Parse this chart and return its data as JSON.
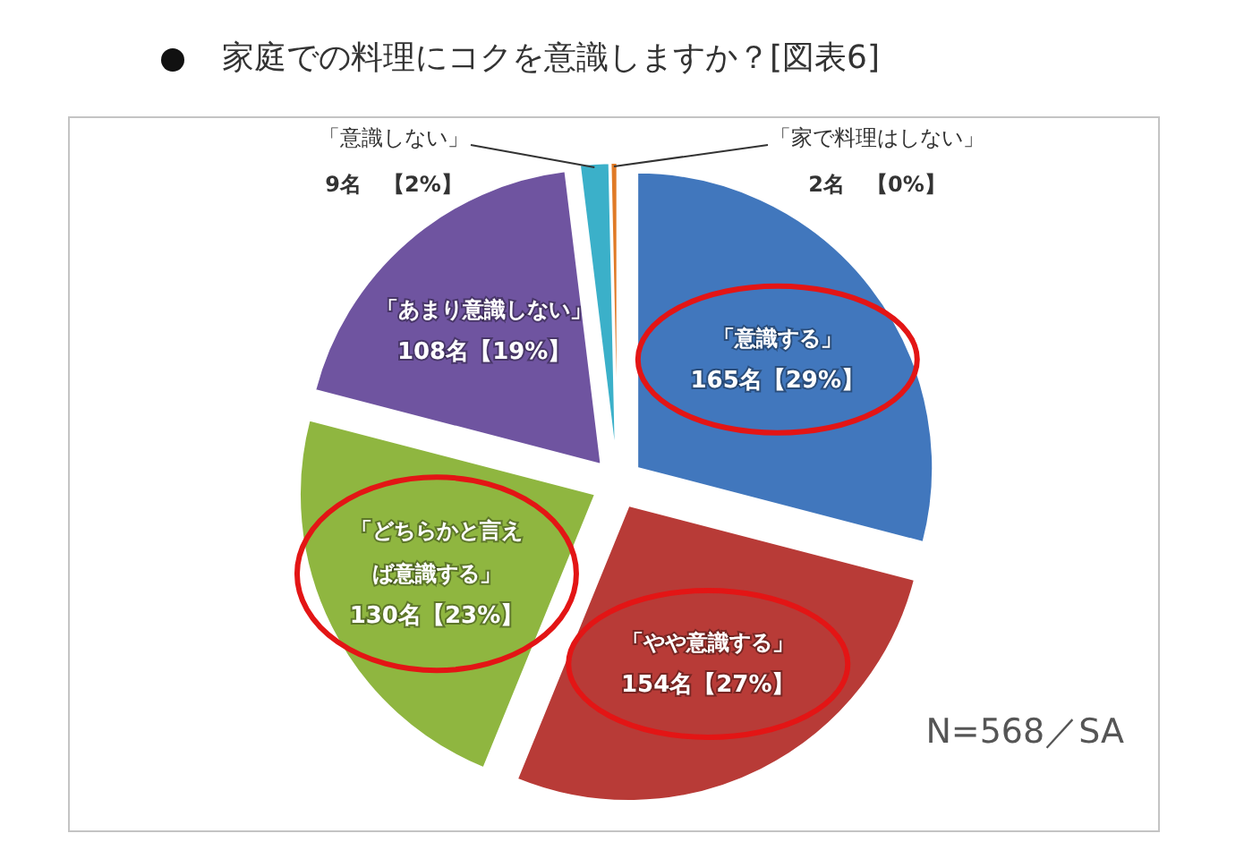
{
  "chart_data": {
    "type": "pie",
    "title": "家庭での料理にコクを意識しますか？[図表6]",
    "categories": [
      "「意識する」",
      "「やや意識する」",
      "「どちらかと言えば意識する」",
      "「あまり意識しない」",
      "「意識しない」",
      "「家で料理はしない」"
    ],
    "values": [
      165,
      154,
      130,
      108,
      9,
      2
    ],
    "colors": [
      "#4177bd",
      "#b83b37",
      "#8fb640",
      "#6f54a0",
      "#3bb0c9",
      "#e07a26"
    ],
    "value_labels": [
      "165名【29%】",
      "154名【27%】",
      "130名【23%】",
      "108名【19%】",
      "9名　【2%】",
      "2名　【0%】"
    ],
    "annotations": [
      "N=568／SA"
    ]
  }
}
